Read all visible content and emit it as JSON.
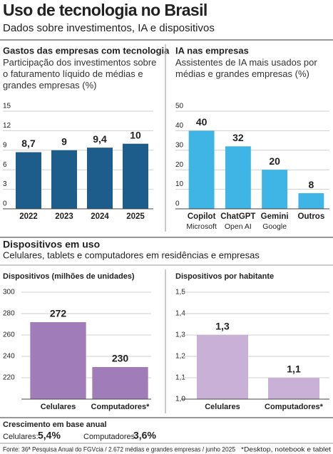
{
  "header": {
    "title": "Uso de tecnologia no Brasil",
    "subtitle": "Dados sobre investimentos, IA e dispositivos"
  },
  "section": {
    "title": "Dispositivos em uso",
    "subtitle": "Celulares, tablets e computadores em residências e empresas"
  },
  "growth": {
    "title": "Crescimento em base anual",
    "items": [
      {
        "label": "Celulares:",
        "value": "5,4%"
      },
      {
        "label": "Computadores:",
        "value": "3,6%"
      }
    ]
  },
  "source": "Fonte: 36ª Pesquisa Anual do FGVcia / 2.672 médias e grandes empresas / junho 2025",
  "footnote": "*Desktop, notebook e tablet",
  "chart_data": [
    {
      "type": "bar",
      "title": "Gastos das empresas com tecnologia",
      "subtitle": "Participação dos investimentos sobre o faturamento líquido de médias e grandes empresas (%)",
      "categories": [
        "2022",
        "2023",
        "2024",
        "2025"
      ],
      "values": [
        8.7,
        9,
        9.4,
        10
      ],
      "value_labels": [
        "8,7",
        "9",
        "9,4",
        "10"
      ],
      "color": "#1c5d8c",
      "ylim": [
        0,
        15
      ],
      "yticks": [
        0,
        3,
        6,
        9,
        12,
        15
      ],
      "grid": true
    },
    {
      "type": "bar",
      "title": "IA nas empresas",
      "subtitle": "Assistentes de IA mais usados por médias e grandes empresas (%)",
      "categories": [
        "Copilot",
        "ChatGPT",
        "Gemini",
        "Outros"
      ],
      "subcategories": [
        "Microsoft",
        "Open AI",
        "Google",
        null
      ],
      "values": [
        40,
        32,
        20,
        8
      ],
      "color": "#3fb5e5",
      "ylim": [
        0,
        50
      ],
      "yticks": [
        0,
        10,
        20,
        30,
        40,
        50
      ],
      "grid": true
    },
    {
      "type": "bar",
      "title": "Dispositivos (milhões de unidades)",
      "categories": [
        "Celulares",
        "Computadores*"
      ],
      "values": [
        272,
        230
      ],
      "color": "#a07db8",
      "ylim": [
        200,
        300
      ],
      "yticks": [
        220,
        240,
        260,
        280,
        300
      ],
      "grid": true
    },
    {
      "type": "bar",
      "title": "Dispositivos por habitante",
      "categories": [
        "Celulares",
        "Computadores*"
      ],
      "values": [
        1.3,
        1.1
      ],
      "value_labels": [
        "1,3",
        "1,1"
      ],
      "color": "#c8b0d6",
      "ylim": [
        1.0,
        1.5
      ],
      "yticks": [
        {
          "value": 1.0,
          "label": "1,0"
        },
        {
          "value": 1.1,
          "label": "1,1"
        },
        {
          "value": 1.2,
          "label": "1,2"
        },
        {
          "value": 1.3,
          "label": "1,3"
        },
        {
          "value": 1.4,
          "label": "1,4"
        },
        {
          "value": 1.5,
          "label": "1,5"
        }
      ],
      "grid": true
    }
  ]
}
